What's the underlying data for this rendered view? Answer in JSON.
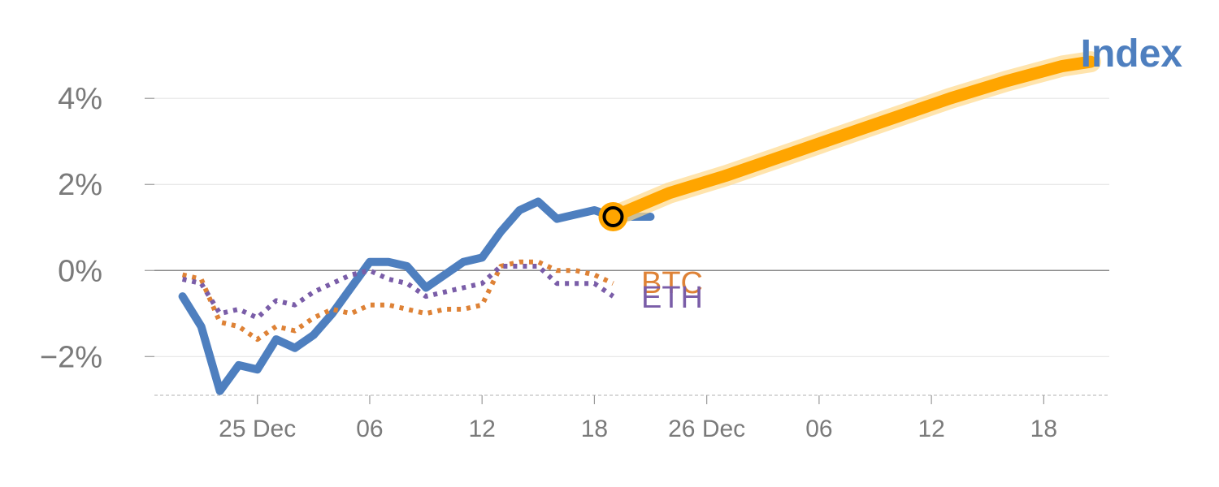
{
  "chart_data": {
    "type": "line",
    "title": "Index",
    "xlabel": "",
    "ylabel": "",
    "y_ticks": [
      "4%",
      "2%",
      "0%",
      "−2%"
    ],
    "y_tick_values": [
      4,
      2,
      0,
      -2
    ],
    "ylim": [
      -2.9,
      4.4
    ],
    "x_ticks": [
      "25 Dec",
      "06",
      "12",
      "18",
      "26 Dec",
      "06",
      "12",
      "18"
    ],
    "x_tick_values": [
      5,
      11,
      17,
      23,
      29,
      35,
      41,
      47
    ],
    "xlim": [
      -0.5,
      50.5
    ],
    "grid": true,
    "series": [
      {
        "name": "",
        "style": "solid",
        "color": "#4e7fbf",
        "x": [
          1,
          2,
          3,
          4,
          5,
          6,
          7,
          8,
          9,
          10,
          11,
          12,
          13,
          14,
          15,
          16,
          17,
          18,
          19,
          20,
          21,
          22,
          23,
          24,
          25,
          26
        ],
        "y": [
          -0.6,
          -1.3,
          -2.8,
          -2.2,
          -2.3,
          -1.6,
          -1.8,
          -1.5,
          -1.0,
          -0.4,
          0.2,
          0.2,
          0.1,
          -0.4,
          -0.1,
          0.2,
          0.3,
          0.9,
          1.4,
          1.6,
          1.2,
          1.3,
          1.4,
          1.25,
          1.25,
          1.25
        ]
      },
      {
        "name": "BTC",
        "style": "dotted",
        "color": "#de8236",
        "x": [
          1,
          2,
          3,
          4,
          5,
          6,
          7,
          8,
          9,
          10,
          11,
          12,
          13,
          14,
          15,
          16,
          17,
          18,
          19,
          20,
          21,
          22,
          23,
          24
        ],
        "y": [
          -0.1,
          -0.2,
          -1.2,
          -1.3,
          -1.6,
          -1.3,
          -1.4,
          -1.1,
          -0.9,
          -1.0,
          -0.8,
          -0.8,
          -0.9,
          -1.0,
          -0.9,
          -0.9,
          -0.8,
          0.1,
          0.2,
          0.2,
          0.0,
          0.0,
          -0.1,
          -0.3
        ]
      },
      {
        "name": "ETH",
        "style": "dotted",
        "color": "#7a5da8",
        "x": [
          1,
          2,
          3,
          4,
          5,
          6,
          7,
          8,
          9,
          10,
          11,
          12,
          13,
          14,
          15,
          16,
          17,
          18,
          19,
          20,
          21,
          22,
          23,
          24
        ],
        "y": [
          -0.2,
          -0.3,
          -1.0,
          -0.9,
          -1.1,
          -0.7,
          -0.8,
          -0.5,
          -0.3,
          -0.1,
          0.0,
          -0.2,
          -0.3,
          -0.6,
          -0.5,
          -0.4,
          -0.3,
          0.1,
          0.1,
          0.1,
          -0.3,
          -0.3,
          -0.3,
          -0.6
        ]
      },
      {
        "name": "",
        "style": "projection",
        "color": "#ffa500",
        "x": [
          24,
          27,
          30,
          33,
          36,
          39,
          42,
          45,
          48,
          49.5
        ],
        "y": [
          1.25,
          1.8,
          2.2,
          2.65,
          3.1,
          3.55,
          4.0,
          4.4,
          4.75,
          4.85
        ]
      }
    ],
    "marker": {
      "x": 24,
      "y": 1.25,
      "color": "#ffa500"
    },
    "labels": {
      "btc": "BTC",
      "eth": "ETH"
    },
    "colors": {
      "title": "#4e7fbf",
      "grid": "#e6e6e6",
      "zero_line": "#888888",
      "axis_text": "#7a7a7a"
    }
  }
}
